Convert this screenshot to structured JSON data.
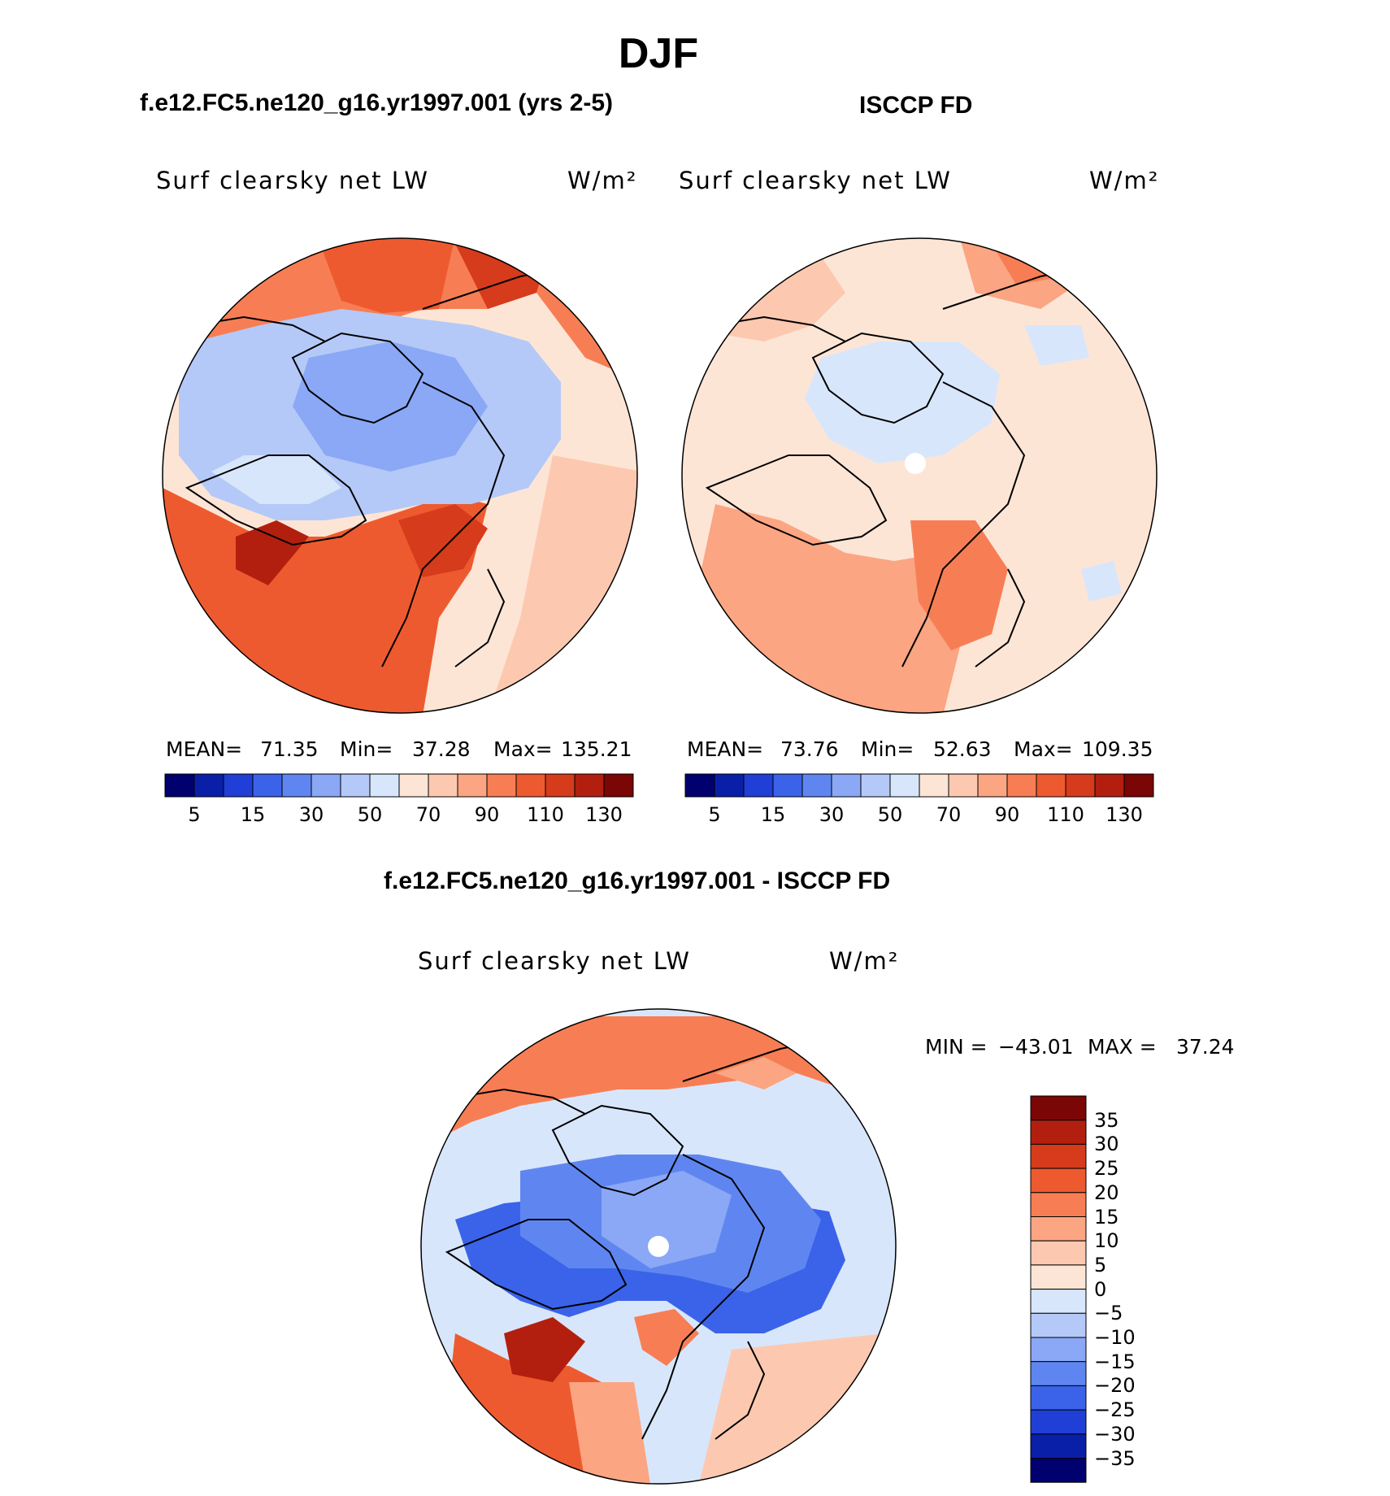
{
  "figure": {
    "title": "DJF"
  },
  "panels": {
    "model": {
      "title": "f.e12.FC5.ne120_g16.yr1997.001 (yrs 2-5)",
      "variable": "Surf clearsky net LW",
      "units": "W/m²",
      "mean_label": "MEAN=",
      "mean": "71.35",
      "min_label": "Min=",
      "min": "37.28",
      "max_label": "Max=",
      "max": "135.21"
    },
    "obs": {
      "title": "ISCCP FD",
      "variable": "Surf clearsky net LW",
      "units": "W/m²",
      "mean_label": "MEAN=",
      "mean": "73.76",
      "min_label": "Min=",
      "min": "52.63",
      "max_label": "Max=",
      "max": "109.35"
    },
    "diff": {
      "title": "f.e12.FC5.ne120_g16.yr1997.001 - ISCCP FD",
      "variable": "Surf clearsky net LW",
      "units": "W/m²",
      "min_label": "MIN =",
      "min": "−43.01",
      "max_label": "MAX =",
      "max": "37.24"
    }
  },
  "colorbars": {
    "abs_colors": [
      "#00006e",
      "#0a1fa8",
      "#1f3fd6",
      "#3a63ea",
      "#5f86f0",
      "#8aa8f5",
      "#b4c9f8",
      "#d8e6fb",
      "#fde5d6",
      "#fcc9b0",
      "#fba582",
      "#f77e54",
      "#ee5a2f",
      "#d63b1c",
      "#b21f0e",
      "#7a0606"
    ],
    "abs_tick_labels": [
      "5",
      "15",
      "30",
      "50",
      "70",
      "90",
      "110",
      "130"
    ],
    "diff_colors": [
      "#00006e",
      "#0a1fa8",
      "#1f3fd6",
      "#3a63ea",
      "#5f86f0",
      "#8aa8f5",
      "#b4c9f8",
      "#d8e6fb",
      "#fde5d6",
      "#fcc9b0",
      "#fba582",
      "#f77e54",
      "#ee5a2f",
      "#d63b1c",
      "#b21f0e",
      "#7a0606"
    ],
    "diff_tick_labels": [
      "35",
      "30",
      "25",
      "20",
      "15",
      "10",
      "5",
      "0",
      "−5",
      "−10",
      "−15",
      "−20",
      "−25",
      "−30",
      "−35"
    ]
  }
}
